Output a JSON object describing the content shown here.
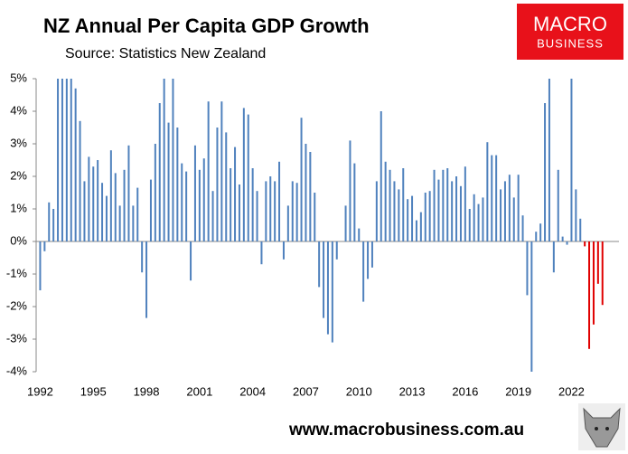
{
  "chart_data": {
    "type": "bar",
    "title": "NZ Annual Per Capita GDP Growth",
    "subtitle": "Source: Statistics New Zealand",
    "logo": [
      "MACRO",
      "BUSINESS"
    ],
    "footer": "www.macrobusiness.com.au",
    "categories": [
      "1992",
      null,
      null,
      null,
      null,
      null,
      null,
      null,
      null,
      null,
      null,
      null,
      "1995",
      null,
      null,
      null,
      null,
      null,
      null,
      null,
      null,
      null,
      null,
      null,
      "1998",
      null,
      null,
      null,
      null,
      null,
      null,
      null,
      null,
      null,
      null,
      null,
      "2001",
      null,
      null,
      null,
      null,
      null,
      null,
      null,
      null,
      null,
      null,
      null,
      "2004",
      null,
      null,
      null,
      null,
      null,
      null,
      null,
      null,
      null,
      null,
      null,
      "2007",
      null,
      null,
      null,
      null,
      null,
      null,
      null,
      null,
      null,
      null,
      null,
      "2010",
      null,
      null,
      null,
      null,
      null,
      null,
      null,
      null,
      null,
      null,
      null,
      "2013",
      null,
      null,
      null,
      null,
      null,
      null,
      null,
      null,
      null,
      null,
      null,
      "2016",
      null,
      null,
      null,
      null,
      null,
      null,
      null,
      null,
      null,
      null,
      null,
      "2019",
      null,
      null,
      null,
      null,
      null,
      null,
      null,
      null,
      null,
      null,
      null,
      "2022",
      null,
      null,
      null,
      null,
      null,
      null,
      null
    ],
    "values": [
      -1.5,
      -0.3,
      1.2,
      1.0,
      5.5,
      5.5,
      5.5,
      5.5,
      4.7,
      3.7,
      1.85,
      2.6,
      2.3,
      2.5,
      1.8,
      1.4,
      2.8,
      2.1,
      1.1,
      2.2,
      2.95,
      1.1,
      1.65,
      -0.95,
      -2.35,
      1.9,
      3.0,
      4.25,
      5.5,
      3.65,
      5.5,
      3.5,
      2.4,
      2.15,
      -1.2,
      2.95,
      2.2,
      2.55,
      4.3,
      1.55,
      3.5,
      4.3,
      3.35,
      2.25,
      2.9,
      1.75,
      4.1,
      3.9,
      2.25,
      1.55,
      -0.7,
      1.85,
      2.0,
      1.85,
      2.45,
      -0.55,
      1.1,
      1.85,
      1.8,
      3.8,
      3.0,
      2.75,
      1.5,
      -1.4,
      -2.35,
      -2.85,
      -3.1,
      -0.55,
      0,
      1.1,
      3.1,
      2.4,
      0.4,
      -1.85,
      -1.15,
      -0.8,
      1.85,
      4.0,
      2.45,
      2.2,
      1.85,
      1.6,
      2.25,
      1.3,
      1.4,
      0.65,
      0.9,
      1.5,
      1.55,
      2.2,
      1.9,
      2.2,
      2.25,
      1.85,
      2.0,
      1.7,
      2.3,
      1.0,
      1.45,
      1.15,
      1.35,
      3.05,
      2.65,
      2.65,
      1.6,
      1.85,
      2.05,
      1.35,
      2.05,
      0.8,
      -1.65,
      -4.0,
      0.3,
      0.55,
      4.25,
      5.5,
      -0.95,
      2.2,
      0.15,
      -0.1,
      5.5,
      1.6,
      0.7,
      -0.15,
      -3.3,
      -2.55,
      -1.3,
      -1.95
    ],
    "colors": [
      "#4f81bd",
      "#4f81bd",
      "#4f81bd",
      "#4f81bd",
      "#4f81bd",
      "#4f81bd",
      "#4f81bd",
      "#4f81bd",
      "#4f81bd",
      "#4f81bd",
      "#4f81bd",
      "#4f81bd",
      "#4f81bd",
      "#4f81bd",
      "#4f81bd",
      "#4f81bd",
      "#4f81bd",
      "#4f81bd",
      "#4f81bd",
      "#4f81bd",
      "#4f81bd",
      "#4f81bd",
      "#4f81bd",
      "#4f81bd",
      "#4f81bd",
      "#4f81bd",
      "#4f81bd",
      "#4f81bd",
      "#4f81bd",
      "#4f81bd",
      "#4f81bd",
      "#4f81bd",
      "#4f81bd",
      "#4f81bd",
      "#4f81bd",
      "#4f81bd",
      "#4f81bd",
      "#4f81bd",
      "#4f81bd",
      "#4f81bd",
      "#4f81bd",
      "#4f81bd",
      "#4f81bd",
      "#4f81bd",
      "#4f81bd",
      "#4f81bd",
      "#4f81bd",
      "#4f81bd",
      "#4f81bd",
      "#4f81bd",
      "#4f81bd",
      "#4f81bd",
      "#4f81bd",
      "#4f81bd",
      "#4f81bd",
      "#4f81bd",
      "#4f81bd",
      "#4f81bd",
      "#4f81bd",
      "#4f81bd",
      "#4f81bd",
      "#4f81bd",
      "#4f81bd",
      "#4f81bd",
      "#4f81bd",
      "#4f81bd",
      "#4f81bd",
      "#4f81bd",
      "#4f81bd",
      "#4f81bd",
      "#4f81bd",
      "#4f81bd",
      "#4f81bd",
      "#4f81bd",
      "#4f81bd",
      "#4f81bd",
      "#4f81bd",
      "#4f81bd",
      "#4f81bd",
      "#4f81bd",
      "#4f81bd",
      "#4f81bd",
      "#4f81bd",
      "#4f81bd",
      "#4f81bd",
      "#4f81bd",
      "#4f81bd",
      "#4f81bd",
      "#4f81bd",
      "#4f81bd",
      "#4f81bd",
      "#4f81bd",
      "#4f81bd",
      "#4f81bd",
      "#4f81bd",
      "#4f81bd",
      "#4f81bd",
      "#4f81bd",
      "#4f81bd",
      "#4f81bd",
      "#4f81bd",
      "#4f81bd",
      "#4f81bd",
      "#4f81bd",
      "#4f81bd",
      "#4f81bd",
      "#4f81bd",
      "#4f81bd",
      "#4f81bd",
      "#4f81bd",
      "#4f81bd",
      "#4f81bd",
      "#4f81bd",
      "#4f81bd",
      "#4f81bd",
      "#4f81bd",
      "#4f81bd",
      "#4f81bd",
      "#4f81bd",
      "#4f81bd",
      "#4f81bd",
      "#4f81bd",
      "#4f81bd",
      "#e00000",
      "#e00000",
      "#e00000",
      "#e00000",
      "#e00000"
    ],
    "ylim": [
      -4,
      5
    ],
    "yticks": [
      {
        "value": -4,
        "label": "-4%"
      },
      {
        "value": -3,
        "label": "-3%"
      },
      {
        "value": -2,
        "label": "-2%"
      },
      {
        "value": -1,
        "label": "-1%"
      },
      {
        "value": 0,
        "label": "0%"
      },
      {
        "value": 1,
        "label": "1%"
      },
      {
        "value": 2,
        "label": "2%"
      },
      {
        "value": 3,
        "label": "3%"
      },
      {
        "value": 4,
        "label": "4%"
      },
      {
        "value": 5,
        "label": "5%"
      }
    ],
    "grid": false
  }
}
